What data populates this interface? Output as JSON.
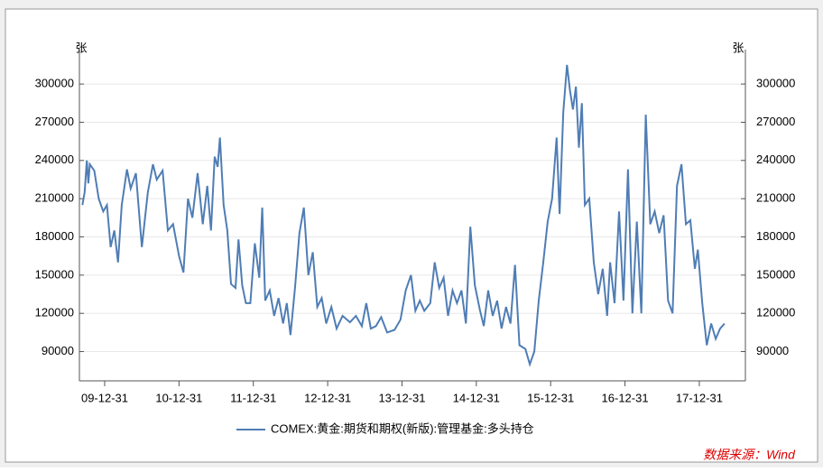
{
  "chart_data": {
    "type": "line",
    "y_unit": "张",
    "y2_unit": "张",
    "source": "数据来源：Wind",
    "ylim": [
      67000,
      327000
    ],
    "yticks": [
      90000,
      120000,
      150000,
      180000,
      210000,
      240000,
      270000,
      300000
    ],
    "y2lim": [
      67000,
      327000
    ],
    "y2ticks": [
      90000,
      120000,
      150000,
      180000,
      210000,
      240000,
      270000,
      300000
    ],
    "xlim": [
      2009.66,
      2018.62
    ],
    "xticks": [
      {
        "value": 2010.0,
        "label": "09-12-31"
      },
      {
        "value": 2011.0,
        "label": "10-12-31"
      },
      {
        "value": 2012.0,
        "label": "11-12-31"
      },
      {
        "value": 2013.0,
        "label": "12-12-31"
      },
      {
        "value": 2014.0,
        "label": "13-12-31"
      },
      {
        "value": 2015.0,
        "label": "14-12-31"
      },
      {
        "value": 2016.0,
        "label": "15-12-31"
      },
      {
        "value": 2017.0,
        "label": "16-12-31"
      },
      {
        "value": 2018.0,
        "label": "17-12-31"
      }
    ],
    "grid": true,
    "x": [
      2009.7,
      2009.73,
      2009.76,
      2009.78,
      2009.8,
      2009.86,
      2009.92,
      2009.98,
      2010.03,
      2010.08,
      2010.13,
      2010.18,
      2010.23,
      2010.3,
      2010.35,
      2010.42,
      2010.5,
      2010.58,
      2010.65,
      2010.7,
      2010.78,
      2010.85,
      2010.92,
      2011.0,
      2011.06,
      2011.12,
      2011.18,
      2011.25,
      2011.32,
      2011.38,
      2011.43,
      2011.48,
      2011.52,
      2011.55,
      2011.6,
      2011.65,
      2011.7,
      2011.76,
      2011.8,
      2011.85,
      2011.9,
      2011.96,
      2012.02,
      2012.08,
      2012.12,
      2012.16,
      2012.22,
      2012.28,
      2012.34,
      2012.4,
      2012.45,
      2012.5,
      2012.56,
      2012.62,
      2012.68,
      2012.74,
      2012.8,
      2012.86,
      2012.92,
      2012.98,
      2013.05,
      2013.12,
      2013.2,
      2013.3,
      2013.38,
      2013.46,
      2013.52,
      2013.58,
      2013.65,
      2013.72,
      2013.8,
      2013.9,
      2013.98,
      2014.05,
      2014.12,
      2014.18,
      2014.24,
      2014.3,
      2014.38,
      2014.44,
      2014.5,
      2014.56,
      2014.62,
      2014.68,
      2014.74,
      2014.8,
      2014.86,
      2014.92,
      2014.98,
      2015.05,
      2015.1,
      2015.16,
      2015.22,
      2015.28,
      2015.34,
      2015.4,
      2015.46,
      2015.52,
      2015.58,
      2015.66,
      2015.72,
      2015.78,
      2015.84,
      2015.9,
      2015.96,
      2016.02,
      2016.08,
      2016.12,
      2016.17,
      2016.22,
      2016.26,
      2016.3,
      2016.34,
      2016.38,
      2016.42,
      2016.46,
      2016.52,
      2016.58,
      2016.64,
      2016.7,
      2016.76,
      2016.8,
      2016.86,
      2016.92,
      2016.98,
      2017.04,
      2017.1,
      2017.16,
      2017.22,
      2017.28,
      2017.34,
      2017.4,
      2017.46,
      2017.52,
      2017.58,
      2017.64,
      2017.7,
      2017.76,
      2017.82,
      2017.88,
      2017.94,
      2017.98,
      2018.04,
      2018.1,
      2018.16,
      2018.22,
      2018.28,
      2018.34
    ],
    "series": [
      {
        "name": "COMEX:黄金:期货和期权(新版):管理基金:多头持仓",
        "color": "#4f7db5",
        "values": [
          205000,
          215000,
          240000,
          222000,
          237000,
          232000,
          210000,
          200000,
          205000,
          172000,
          185000,
          160000,
          205000,
          233000,
          218000,
          230000,
          172000,
          215000,
          237000,
          225000,
          232000,
          185000,
          190000,
          165000,
          152000,
          210000,
          195000,
          230000,
          190000,
          220000,
          185000,
          243000,
          235000,
          258000,
          205000,
          185000,
          143000,
          140000,
          178000,
          142000,
          128000,
          128000,
          175000,
          148000,
          203000,
          130000,
          138000,
          118000,
          132000,
          112000,
          128000,
          103000,
          140000,
          183000,
          203000,
          150000,
          168000,
          125000,
          132000,
          112000,
          125000,
          108000,
          118000,
          113000,
          118000,
          110000,
          128000,
          108000,
          110000,
          117000,
          105000,
          107000,
          115000,
          138000,
          150000,
          122000,
          130000,
          122000,
          128000,
          160000,
          140000,
          148000,
          118000,
          138000,
          128000,
          138000,
          112000,
          188000,
          142000,
          122000,
          110000,
          138000,
          118000,
          130000,
          108000,
          125000,
          112000,
          158000,
          95000,
          92000,
          80000,
          90000,
          130000,
          160000,
          192000,
          210000,
          258000,
          198000,
          278000,
          315000,
          295000,
          280000,
          298000,
          250000,
          285000,
          205000,
          210000,
          160000,
          135000,
          155000,
          118000,
          160000,
          128000,
          200000,
          130000,
          233000,
          120000,
          192000,
          120000,
          276000,
          190000,
          200000,
          183000,
          197000,
          130000,
          120000,
          220000,
          237000,
          190000,
          193000,
          155000,
          170000,
          128000,
          95000,
          112000,
          100000,
          108000,
          112000
        ]
      }
    ]
  }
}
